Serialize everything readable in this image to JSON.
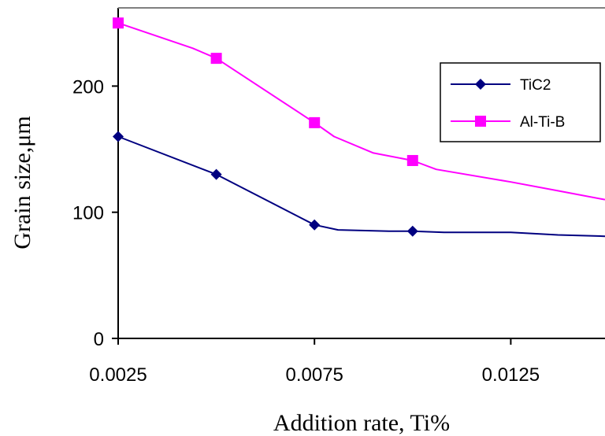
{
  "chart_data": {
    "type": "line",
    "xlabel": "Addition rate, Ti%",
    "ylabel": "Grain size,μm",
    "xlim": [
      0.0025,
      0.0149
    ],
    "ylim": [
      0,
      262
    ],
    "x_ticks": [
      {
        "value": 0.0025,
        "label": "0.0025"
      },
      {
        "value": 0.0075,
        "label": "0.0075"
      },
      {
        "value": 0.0125,
        "label": "0.0125"
      }
    ],
    "y_ticks": [
      {
        "value": 0,
        "label": "0"
      },
      {
        "value": 100,
        "label": "100"
      },
      {
        "value": 200,
        "label": "200"
      }
    ],
    "legend_position": "top-right",
    "grid": false,
    "series": [
      {
        "name": "TiC2",
        "color": "#000080",
        "marker": "diamond",
        "x": [
          0.0025,
          0.005,
          0.0075,
          0.01
        ],
        "values": [
          160,
          130,
          90,
          85
        ],
        "curve_x": [
          0.0025,
          0.005,
          0.0075,
          0.0081,
          0.0094,
          0.01,
          0.0108,
          0.0125,
          0.0137,
          0.0149
        ],
        "curve_y": [
          160,
          130,
          90,
          86,
          85,
          85,
          84,
          84,
          82,
          81
        ]
      },
      {
        "name": "Al-Ti-B",
        "color": "#ff00ff",
        "marker": "square",
        "x": [
          0.0025,
          0.005,
          0.0075,
          0.01
        ],
        "values": [
          250,
          222,
          171,
          141
        ],
        "curve_x": [
          0.0025,
          0.0044,
          0.005,
          0.0075,
          0.008,
          0.009,
          0.01,
          0.0106,
          0.0125,
          0.0137,
          0.0149
        ],
        "curve_y": [
          250,
          230,
          222,
          171,
          160,
          147,
          141,
          134,
          124,
          117,
          110
        ]
      }
    ]
  }
}
